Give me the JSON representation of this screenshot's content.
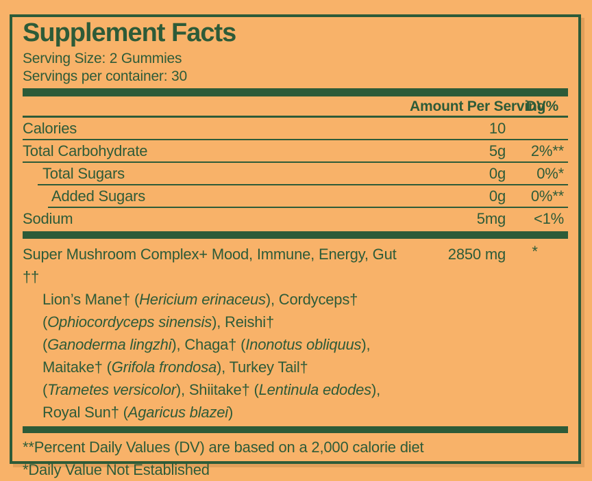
{
  "colors": {
    "background": "#F8B269",
    "ink": "#2D5B38"
  },
  "header": {
    "title": "Supplement Facts",
    "serving_size": "Serving Size: 2 Gummies",
    "servings_per_container": "Servings per container: 30"
  },
  "table": {
    "columns": {
      "amount": "Amount Per Serving",
      "dv": "DV%"
    },
    "rows": [
      {
        "label": "Calories",
        "indent": 0,
        "amount": "10",
        "dv": "",
        "sep_indent": 0
      },
      {
        "label": "Total Carbohydrate",
        "indent": 0,
        "amount": "5g",
        "dv": "2%**",
        "sep_indent": 0
      },
      {
        "label": "Total Sugars",
        "indent": 1,
        "amount": "0g",
        "dv": "0%*",
        "sep_indent": 1
      },
      {
        "label": "Added Sugars",
        "indent": 2,
        "amount": "0g",
        "dv": "0%**",
        "sep_indent": 2
      },
      {
        "label": "Sodium",
        "indent": 0,
        "amount": "5mg",
        "dv": "<1%",
        "sep_indent": null
      }
    ]
  },
  "ingredient": {
    "name_line": {
      "segments": [
        {
          "t": "Super Mushroom Complex+ Mood, Immune, Energy, Gut ††",
          "i": false
        }
      ],
      "amount": "2850 mg",
      "dv": "*"
    },
    "lines": [
      [
        {
          "t": "Lion’s Mane† (",
          "i": false
        },
        {
          "t": "Hericium erinaceus",
          "i": true
        },
        {
          "t": "), Cordyceps†",
          "i": false
        }
      ],
      [
        {
          "t": "(",
          "i": false
        },
        {
          "t": "Ophiocordyceps sinensis",
          "i": true
        },
        {
          "t": "), Reishi†",
          "i": false
        }
      ],
      [
        {
          "t": "(",
          "i": false
        },
        {
          "t": "Ganoderma lingzhi",
          "i": true
        },
        {
          "t": "), Chaga† (",
          "i": false
        },
        {
          "t": "Inonotus obliquus",
          "i": true
        },
        {
          "t": "),",
          "i": false
        }
      ],
      [
        {
          "t": "Maitake† (",
          "i": false
        },
        {
          "t": "Grifola frondosa",
          "i": true
        },
        {
          "t": "), Turkey Tail†",
          "i": false
        }
      ],
      [
        {
          "t": "(",
          "i": false
        },
        {
          "t": "Trametes versicolor",
          "i": true
        },
        {
          "t": "), Shiitake† (",
          "i": false
        },
        {
          "t": "Lentinula edodes",
          "i": true
        },
        {
          "t": "),",
          "i": false
        }
      ],
      [
        {
          "t": "Royal Sun† (",
          "i": false
        },
        {
          "t": "Agaricus blazei",
          "i": true
        },
        {
          "t": ")",
          "i": false
        }
      ]
    ]
  },
  "footnotes": [
    "**Percent Daily Values (DV) are based on a 2,000 calorie diet",
    "*Daily Value Not Established"
  ]
}
